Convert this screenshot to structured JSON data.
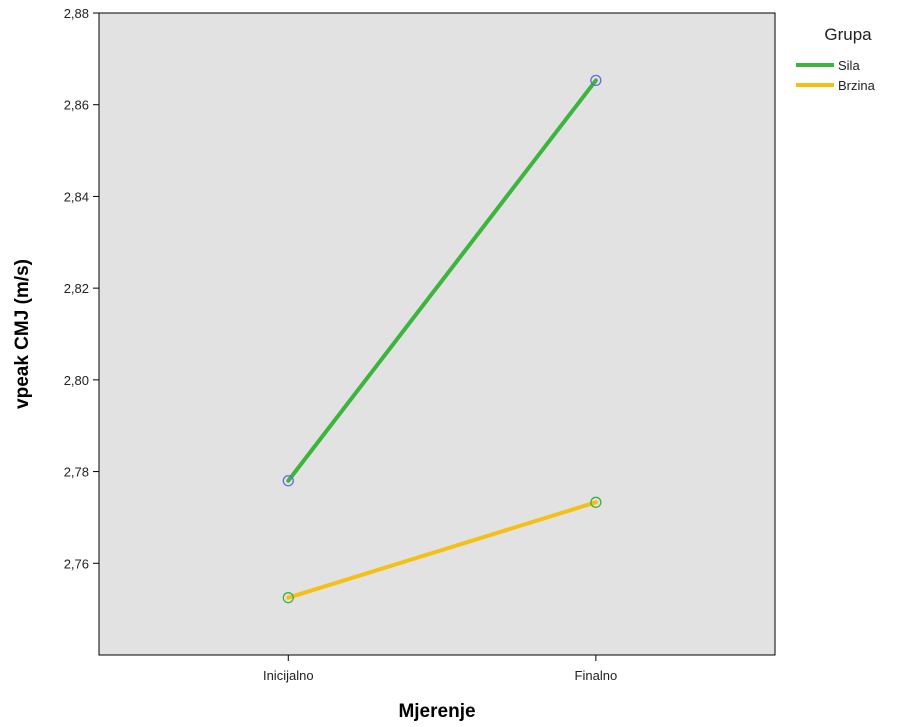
{
  "chart_data": {
    "type": "line",
    "categories": [
      "Inicijalno",
      "Finalno"
    ],
    "xlabel": "Mjerenje",
    "ylabel": "vpeak CMJ (m/s)",
    "ylim": [
      2.74,
      2.88
    ],
    "yticks": [
      2.76,
      2.78,
      2.8,
      2.82,
      2.84,
      2.86,
      2.88
    ],
    "ytick_labels": [
      "2,76",
      "2,78",
      "2,80",
      "2,82",
      "2,84",
      "2,86",
      "2,88"
    ],
    "grid": false,
    "legend_title": "Grupa",
    "legend_position": "top-right outside",
    "plot_background": "#e2e2e2",
    "series": [
      {
        "name": "Sila",
        "values": [
          2.778,
          2.8653
        ],
        "line_color": "#3db43c",
        "marker_color": "#6a6ad6"
      },
      {
        "name": "Brzina",
        "values": [
          2.7525,
          2.7733
        ],
        "line_color": "#f5c016",
        "marker_color": "#3db43c"
      }
    ]
  }
}
